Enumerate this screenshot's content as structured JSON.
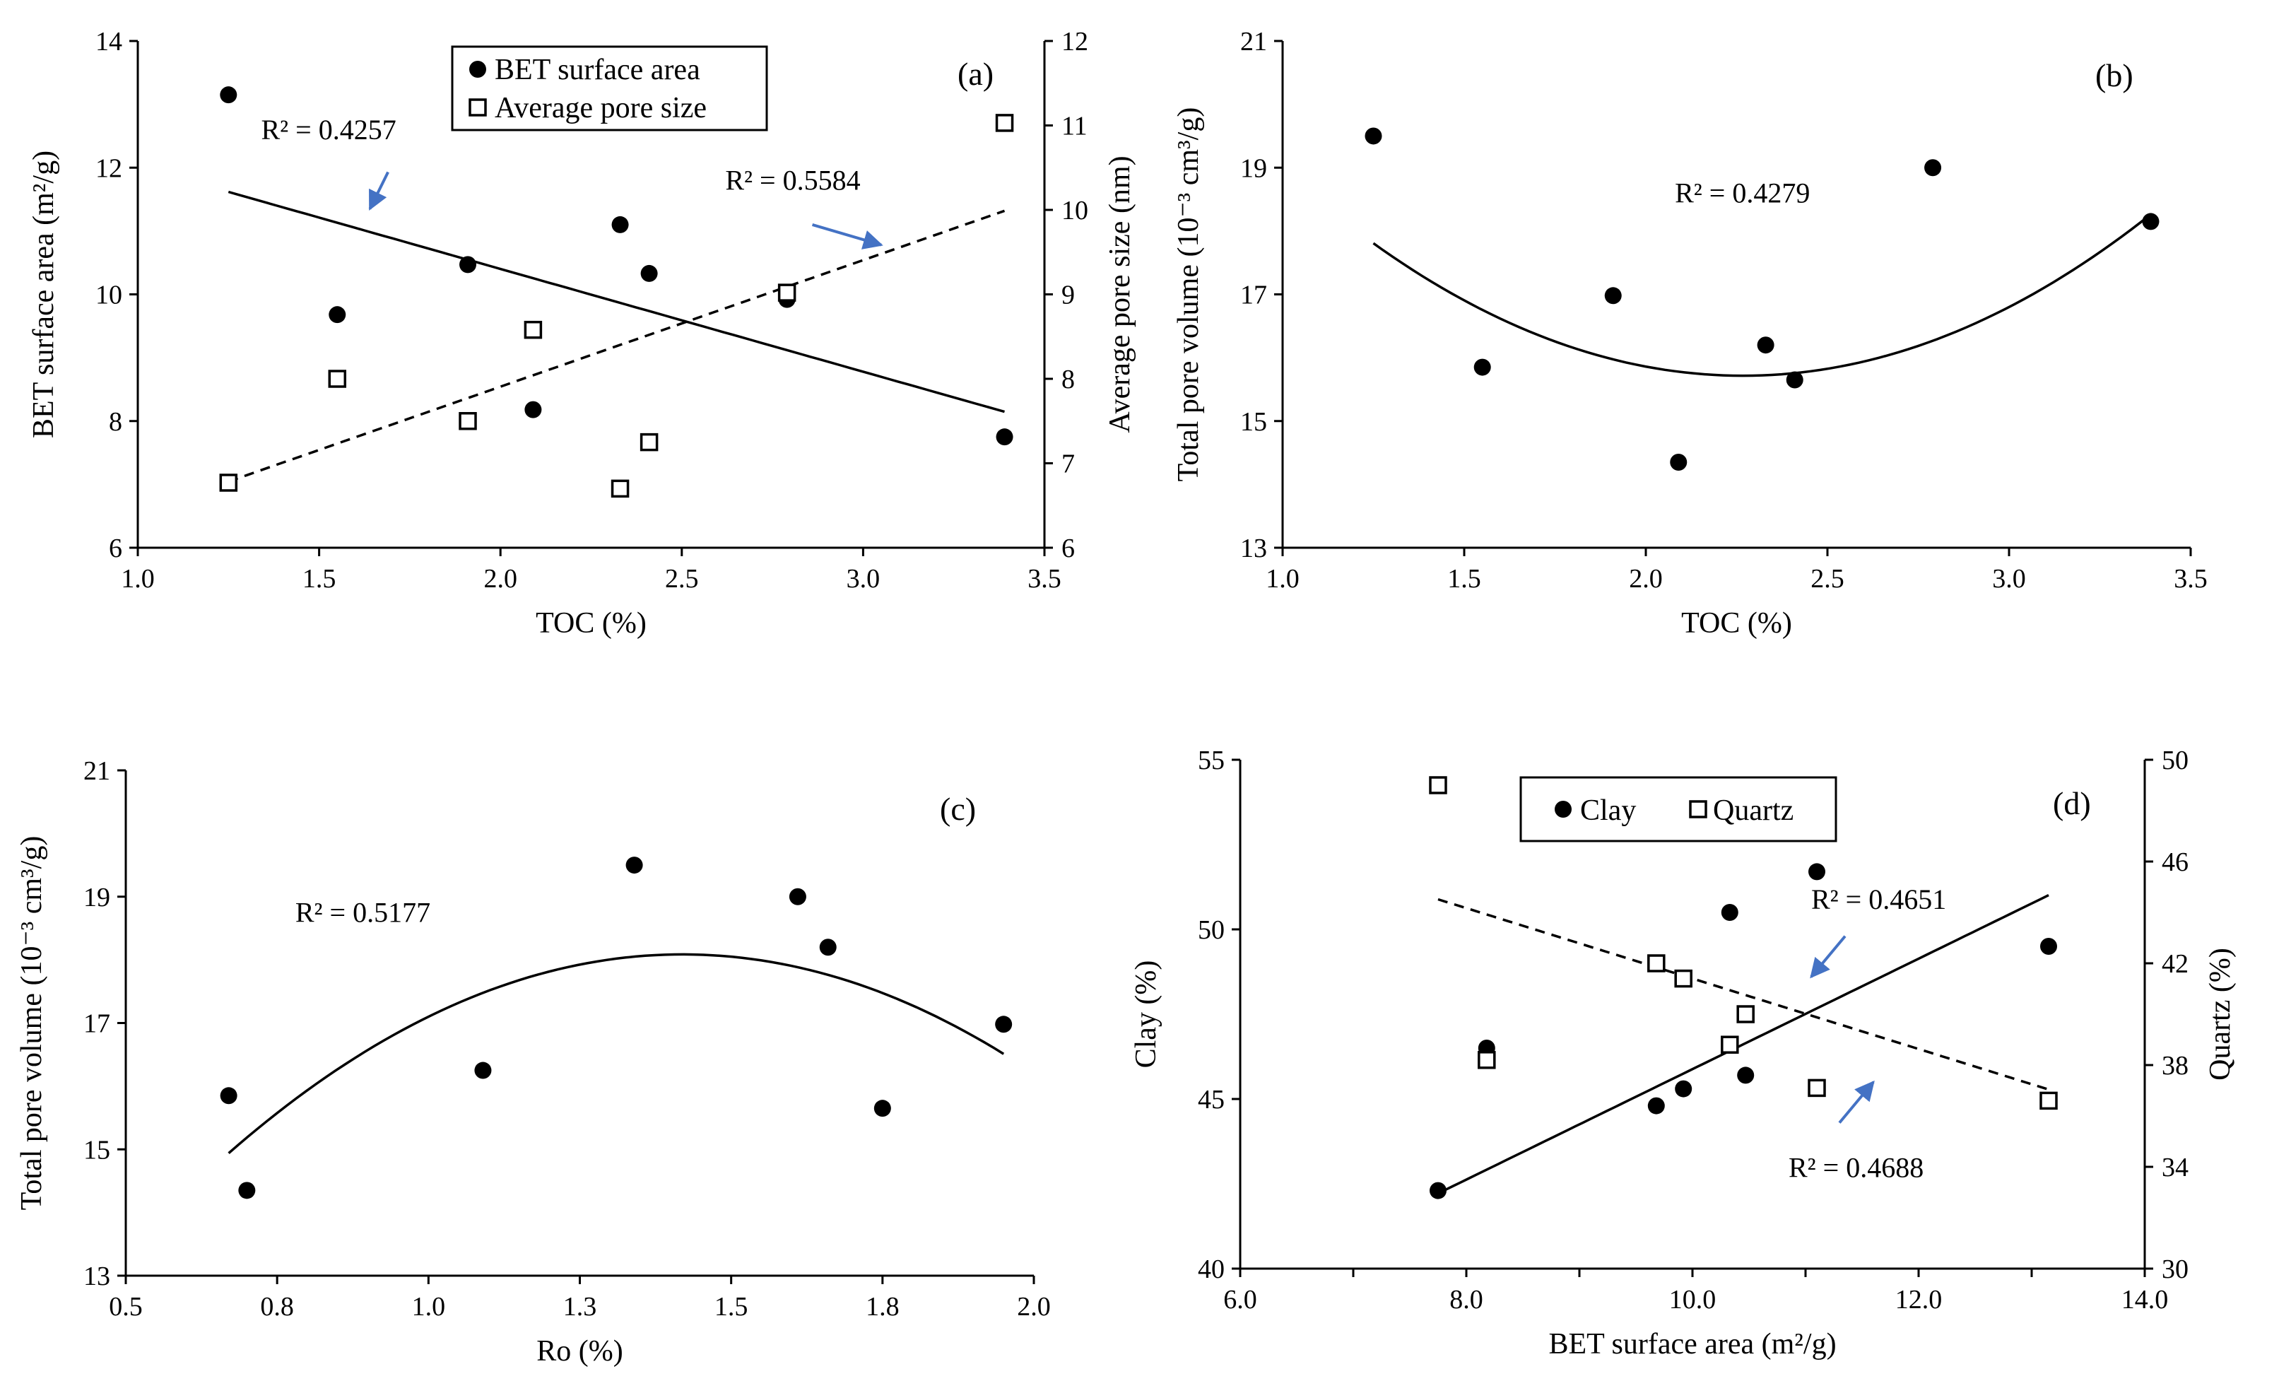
{
  "colors": {
    "axis": "#000000",
    "arrow": "#4472c4",
    "background": "#ffffff"
  },
  "chart_data": [
    {
      "panel": "(a)",
      "type": "scatter",
      "xlabel": "TOC (%)",
      "ylabel": "BET  surface area (m²/g)",
      "y2label": "Average pore size (nm)",
      "xlim": [
        1.0,
        3.5
      ],
      "ylim": [
        6,
        14
      ],
      "y2lim": [
        6,
        12
      ],
      "xticks": [
        "1.0",
        "1.5",
        "2.0",
        "2.5",
        "3.0",
        "3.5"
      ],
      "yticks": [
        "6",
        "8",
        "10",
        "12",
        "14"
      ],
      "y2ticks": [
        "6",
        "7",
        "8",
        "9",
        "10",
        "11",
        "12"
      ],
      "x_minor_ticks": [],
      "legend": [
        "BET surface area",
        "Average pore size"
      ],
      "series": [
        {
          "name": "BET surface area",
          "axis": "y",
          "marker": "filled-circle",
          "points": [
            [
              1.25,
              13.15
            ],
            [
              1.55,
              9.68
            ],
            [
              1.91,
              10.47
            ],
            [
              2.09,
              8.18
            ],
            [
              2.33,
              11.1
            ],
            [
              2.41,
              10.33
            ],
            [
              2.79,
              9.92
            ],
            [
              3.39,
              7.75
            ]
          ]
        },
        {
          "name": "Average pore size",
          "axis": "y2",
          "marker": "open-square",
          "points": [
            [
              1.25,
              6.77
            ],
            [
              1.55,
              8.0
            ],
            [
              1.91,
              7.5
            ],
            [
              2.09,
              8.58
            ],
            [
              2.33,
              6.7
            ],
            [
              2.41,
              7.25
            ],
            [
              2.79,
              9.02
            ],
            [
              3.39,
              11.03
            ]
          ]
        }
      ],
      "fits": [
        {
          "axis": "y",
          "style": "solid",
          "kind": "linear",
          "x_range": [
            1.25,
            3.39
          ],
          "coef": [
            13.645,
            -1.622
          ]
        },
        {
          "axis": "y2",
          "style": "dashed",
          "kind": "linear",
          "x_range": [
            1.25,
            3.39
          ],
          "coef": [
            4.911,
            1.498
          ]
        }
      ],
      "annotations": [
        {
          "text": "R² = 0.4257",
          "x": 1.34,
          "y": 12.45,
          "arrow": [
            [
              1.69,
              11.93
            ],
            [
              1.64,
              11.35
            ]
          ]
        },
        {
          "text": "R² = 0.5584",
          "x": 2.62,
          "y": 11.65,
          "arrow": [
            [
              2.86,
              11.1
            ],
            [
              3.05,
              10.78
            ]
          ]
        }
      ]
    },
    {
      "panel": "(b)",
      "type": "scatter",
      "xlabel": "TOC (%)",
      "ylabel": "Total pore volume (10⁻³ cm³/g)",
      "xlim": [
        1.0,
        3.5
      ],
      "ylim": [
        13,
        21
      ],
      "xticks": [
        "1.0",
        "1.5",
        "2.0",
        "2.5",
        "3.0",
        "3.5"
      ],
      "yticks": [
        "13",
        "15",
        "17",
        "19",
        "21"
      ],
      "x_minor_ticks": [],
      "series": [
        {
          "name": "Total pore volume",
          "axis": "y",
          "marker": "filled-circle",
          "points": [
            [
              1.25,
              19.5
            ],
            [
              1.55,
              15.85
            ],
            [
              1.91,
              16.98
            ],
            [
              2.09,
              14.35
            ],
            [
              2.33,
              16.2
            ],
            [
              2.41,
              15.65
            ],
            [
              2.79,
              19.0
            ],
            [
              3.39,
              18.15
            ]
          ]
        }
      ],
      "fits": [
        {
          "axis": "y",
          "style": "solid",
          "kind": "poly2",
          "x_range": [
            1.25,
            3.39
          ],
          "coef": [
            26.1,
            -9.16,
            2.02
          ]
        }
      ],
      "annotations": [
        {
          "text": "R² = 0.4279",
          "x": 2.08,
          "y": 18.45,
          "arrow": null
        }
      ]
    },
    {
      "panel": "(c)",
      "type": "scatter",
      "xlabel": "Ro (%)",
      "ylabel": "Total pore volume (10⁻³ cm³/g)",
      "xlim": [
        0.5,
        2.0
      ],
      "ylim": [
        13,
        21
      ],
      "xticks": [
        "0.5",
        "0.8",
        "1.0",
        "1.3",
        "1.5",
        "1.8",
        "2.0"
      ],
      "yticks": [
        "13",
        "15",
        "17",
        "19",
        "21"
      ],
      "x_minor_ticks": [],
      "series": [
        {
          "name": "Total pore volume",
          "axis": "y",
          "marker": "filled-circle",
          "points": [
            [
              0.67,
              15.85
            ],
            [
              0.7,
              14.35
            ],
            [
              1.09,
              16.25
            ],
            [
              1.34,
              19.5
            ],
            [
              1.61,
              19.0
            ],
            [
              1.66,
              18.2
            ],
            [
              1.75,
              15.65
            ],
            [
              1.95,
              16.98
            ]
          ]
        }
      ],
      "fits": [
        {
          "axis": "y",
          "style": "solid",
          "kind": "poly2",
          "x_range": [
            0.67,
            1.95
          ],
          "coef": [
            6.8,
            15.9,
            -5.6
          ]
        }
      ],
      "annotations": [
        {
          "text": "R² = 0.5177",
          "x": 0.78,
          "y": 18.6,
          "arrow": null
        }
      ]
    },
    {
      "panel": "(d)",
      "type": "scatter",
      "xlabel": "BET  surface area (m²/g)",
      "ylabel": "Clay (%)",
      "y2label": "Quartz (%)",
      "xlim": [
        6.0,
        14.0
      ],
      "ylim": [
        40,
        55
      ],
      "y2lim": [
        30,
        50
      ],
      "xticks": [
        "6.0",
        "8.0",
        "10.0",
        "12.0",
        "14.0"
      ],
      "yticks": [
        "40",
        "45",
        "50",
        "55"
      ],
      "y2ticks": [
        "30",
        "34",
        "38",
        "42",
        "46",
        "50"
      ],
      "x_minor_ticks": [
        7,
        9,
        11,
        13
      ],
      "legend": [
        "Clay",
        "Quartz"
      ],
      "series": [
        {
          "name": "Clay",
          "axis": "y",
          "marker": "filled-circle",
          "points": [
            [
              7.75,
              42.3
            ],
            [
              8.18,
              46.5
            ],
            [
              9.68,
              44.8
            ],
            [
              9.92,
              45.3
            ],
            [
              10.33,
              50.5
            ],
            [
              10.47,
              45.7
            ],
            [
              11.1,
              51.7
            ],
            [
              13.15,
              49.5
            ]
          ]
        },
        {
          "name": "Quartz",
          "axis": "y2",
          "marker": "open-square",
          "points": [
            [
              7.75,
              49.0
            ],
            [
              8.18,
              38.2
            ],
            [
              9.68,
              42.0
            ],
            [
              9.92,
              41.4
            ],
            [
              10.33,
              38.8
            ],
            [
              10.47,
              40.0
            ],
            [
              11.1,
              37.1
            ],
            [
              13.15,
              36.6
            ]
          ]
        }
      ],
      "fits": [
        {
          "axis": "y",
          "style": "solid",
          "kind": "linear",
          "x_range": [
            7.75,
            13.15
          ],
          "coef": [
            29.6,
            1.628
          ]
        },
        {
          "axis": "y2",
          "style": "dashed",
          "kind": "linear",
          "x_range": [
            7.75,
            13.15
          ],
          "coef": [
            55.24,
            -1.384
          ]
        }
      ],
      "annotations": [
        {
          "text": "R² = 0.4651",
          "x": 11.05,
          "y": 50.6,
          "arrow": [
            [
              11.35,
              49.8
            ],
            [
              11.05,
              48.6
            ]
          ]
        },
        {
          "text": "R² = 0.4688",
          "x": 10.85,
          "y": 42.7,
          "arrow": [
            [
              11.3,
              44.3
            ],
            [
              11.6,
              45.5
            ]
          ]
        }
      ]
    }
  ]
}
